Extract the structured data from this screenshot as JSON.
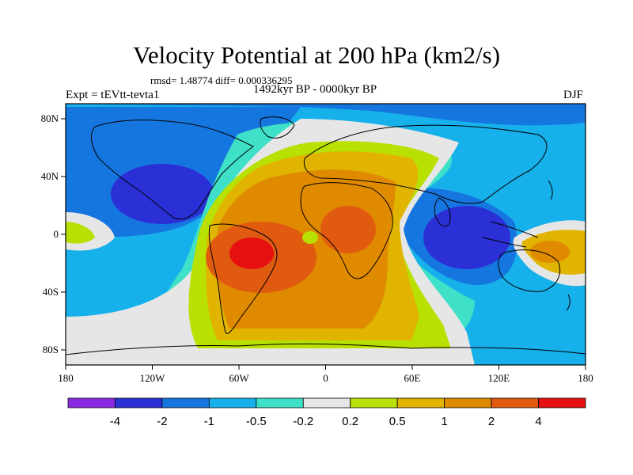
{
  "header": {
    "title": "Velocity Potential at 200 hPa (km2/s)",
    "stats": "rmsd= 1.48774 diff= 0.000336295",
    "period": "1492kyr BP - 0000kyr BP",
    "experiment": "Expt = tEVtt-tevta1",
    "season": "DJF"
  },
  "axes": {
    "x_ticks": [
      "180",
      "120W",
      "60W",
      "0",
      "60E",
      "120E",
      "180"
    ],
    "y_ticks": [
      "80N",
      "40N",
      "0",
      "40S",
      "80S"
    ]
  },
  "colorbar": {
    "colors": [
      "#8a2be2",
      "#2a2fd6",
      "#1676e0",
      "#16b0ea",
      "#3ee0c8",
      "#e6e6e6",
      "#b8e000",
      "#e0b400",
      "#e08a00",
      "#e05a10",
      "#e61010"
    ],
    "labels": [
      "-4",
      "-2",
      "-1",
      "-0.5",
      "-0.2",
      "0.2",
      "0.5",
      "1",
      "2",
      "4"
    ]
  }
}
